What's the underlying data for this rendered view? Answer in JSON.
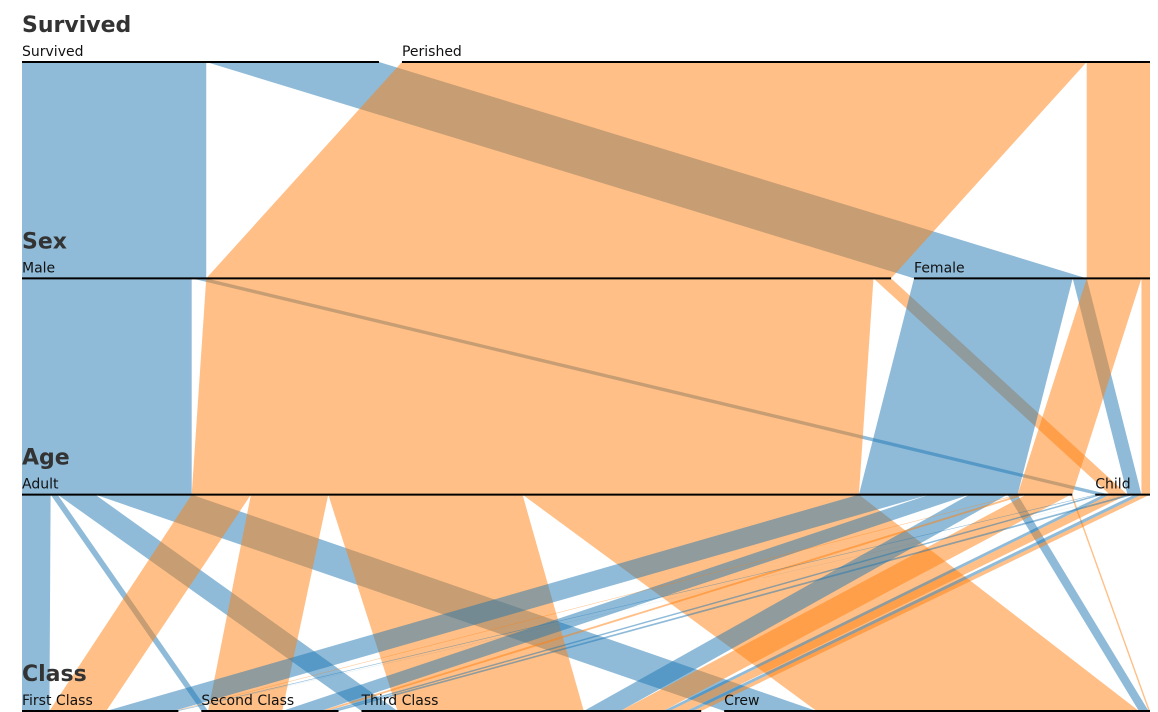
{
  "chart_data": {
    "type": "parallel_sets",
    "dimensions": [
      {
        "name": "Survived",
        "categories": [
          "Survived",
          "Perished"
        ],
        "colors": [
          "#1f77b4",
          "#ff7f0e"
        ]
      },
      {
        "name": "Sex",
        "categories": [
          "Male",
          "Female"
        ]
      },
      {
        "name": "Age",
        "categories": [
          "Adult",
          "Child"
        ]
      },
      {
        "name": "Class",
        "categories": [
          "First Class",
          "Second Class",
          "Third Class",
          "Crew"
        ]
      }
    ],
    "records": [
      {
        "Survived": "Perished",
        "Sex": "Male",
        "Age": "Child",
        "Class": "First Class",
        "count": 0
      },
      {
        "Survived": "Perished",
        "Sex": "Male",
        "Age": "Child",
        "Class": "Second Class",
        "count": 0
      },
      {
        "Survived": "Perished",
        "Sex": "Male",
        "Age": "Child",
        "Class": "Third Class",
        "count": 35
      },
      {
        "Survived": "Perished",
        "Sex": "Male",
        "Age": "Child",
        "Class": "Crew",
        "count": 0
      },
      {
        "Survived": "Perished",
        "Sex": "Female",
        "Age": "Child",
        "Class": "First Class",
        "count": 0
      },
      {
        "Survived": "Perished",
        "Sex": "Female",
        "Age": "Child",
        "Class": "Second Class",
        "count": 0
      },
      {
        "Survived": "Perished",
        "Sex": "Female",
        "Age": "Child",
        "Class": "Third Class",
        "count": 17
      },
      {
        "Survived": "Perished",
        "Sex": "Female",
        "Age": "Child",
        "Class": "Crew",
        "count": 0
      },
      {
        "Survived": "Perished",
        "Sex": "Male",
        "Age": "Adult",
        "Class": "First Class",
        "count": 118
      },
      {
        "Survived": "Perished",
        "Sex": "Male",
        "Age": "Adult",
        "Class": "Second Class",
        "count": 154
      },
      {
        "Survived": "Perished",
        "Sex": "Male",
        "Age": "Adult",
        "Class": "Third Class",
        "count": 387
      },
      {
        "Survived": "Perished",
        "Sex": "Male",
        "Age": "Adult",
        "Class": "Crew",
        "count": 670
      },
      {
        "Survived": "Perished",
        "Sex": "Female",
        "Age": "Adult",
        "Class": "First Class",
        "count": 4
      },
      {
        "Survived": "Perished",
        "Sex": "Female",
        "Age": "Adult",
        "Class": "Second Class",
        "count": 13
      },
      {
        "Survived": "Perished",
        "Sex": "Female",
        "Age": "Adult",
        "Class": "Third Class",
        "count": 89
      },
      {
        "Survived": "Perished",
        "Sex": "Female",
        "Age": "Adult",
        "Class": "Crew",
        "count": 3
      },
      {
        "Survived": "Survived",
        "Sex": "Male",
        "Age": "Child",
        "Class": "First Class",
        "count": 5
      },
      {
        "Survived": "Survived",
        "Sex": "Male",
        "Age": "Child",
        "Class": "Second Class",
        "count": 11
      },
      {
        "Survived": "Survived",
        "Sex": "Male",
        "Age": "Child",
        "Class": "Third Class",
        "count": 13
      },
      {
        "Survived": "Survived",
        "Sex": "Male",
        "Age": "Child",
        "Class": "Crew",
        "count": 0
      },
      {
        "Survived": "Survived",
        "Sex": "Female",
        "Age": "Child",
        "Class": "First Class",
        "count": 1
      },
      {
        "Survived": "Survived",
        "Sex": "Female",
        "Age": "Child",
        "Class": "Second Class",
        "count": 13
      },
      {
        "Survived": "Survived",
        "Sex": "Female",
        "Age": "Child",
        "Class": "Third Class",
        "count": 14
      },
      {
        "Survived": "Survived",
        "Sex": "Female",
        "Age": "Child",
        "Class": "Crew",
        "count": 0
      },
      {
        "Survived": "Survived",
        "Sex": "Male",
        "Age": "Adult",
        "Class": "First Class",
        "count": 57
      },
      {
        "Survived": "Survived",
        "Sex": "Male",
        "Age": "Adult",
        "Class": "Second Class",
        "count": 14
      },
      {
        "Survived": "Survived",
        "Sex": "Male",
        "Age": "Adult",
        "Class": "Third Class",
        "count": 75
      },
      {
        "Survived": "Survived",
        "Sex": "Male",
        "Age": "Adult",
        "Class": "Crew",
        "count": 192
      },
      {
        "Survived": "Survived",
        "Sex": "Female",
        "Age": "Adult",
        "Class": "First Class",
        "count": 140
      },
      {
        "Survived": "Survived",
        "Sex": "Female",
        "Age": "Adult",
        "Class": "Second Class",
        "count": 80
      },
      {
        "Survived": "Survived",
        "Sex": "Female",
        "Age": "Adult",
        "Class": "Third Class",
        "count": 76
      },
      {
        "Survived": "Survived",
        "Sex": "Female",
        "Age": "Adult",
        "Class": "Crew",
        "count": 20
      }
    ]
  }
}
